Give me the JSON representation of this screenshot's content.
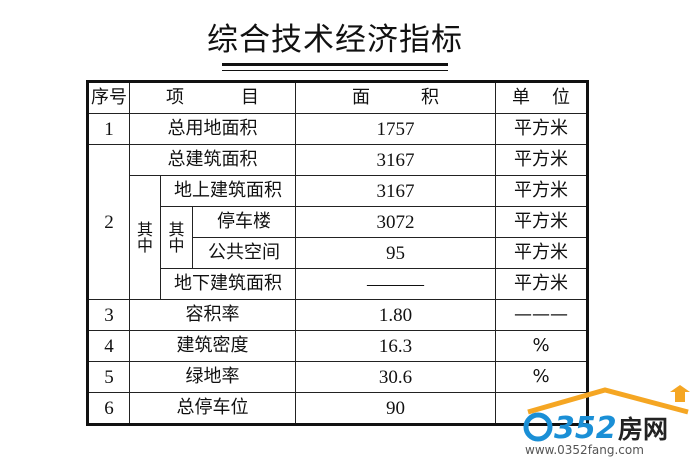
{
  "title": "综合技术经济指标",
  "header": {
    "seq": [
      "序",
      "号"
    ],
    "item": [
      "项",
      "目"
    ],
    "area": [
      "面",
      "积"
    ],
    "unit": [
      "单",
      "位"
    ]
  },
  "rows": {
    "r1": {
      "seq": "1",
      "item": "总用地面积",
      "area": "1757",
      "unit": "平方米"
    },
    "r2": {
      "seq": "2",
      "item": "总建筑面积",
      "area": "3167",
      "unit": "平方米"
    },
    "r2a": {
      "group": "其中",
      "item": "地上建筑面积",
      "area": "3167",
      "unit": "平方米"
    },
    "r2b": {
      "group": "其中",
      "item": "停车楼",
      "area": "3072",
      "unit": "平方米"
    },
    "r2c": {
      "item": "公共空间",
      "area": "95",
      "unit": "平方米"
    },
    "r2d": {
      "item": "地下建筑面积",
      "area": "———",
      "unit": "平方米"
    },
    "r3": {
      "seq": "3",
      "item": "容积率",
      "area": "1.80",
      "unit": "———"
    },
    "r4": {
      "seq": "4",
      "item": "建筑密度",
      "area": "16.3",
      "unit": "%"
    },
    "r5": {
      "seq": "5",
      "item": "绿地率",
      "area": "30.6",
      "unit": "%"
    },
    "r6": {
      "seq": "6",
      "item": "总停车位",
      "area": "90",
      "unit": ""
    }
  },
  "watermark": {
    "brand": "0352房网",
    "url": "www.0352fang.com",
    "colors": {
      "blue": "#1a8fd6",
      "orange": "#f5a623"
    }
  }
}
